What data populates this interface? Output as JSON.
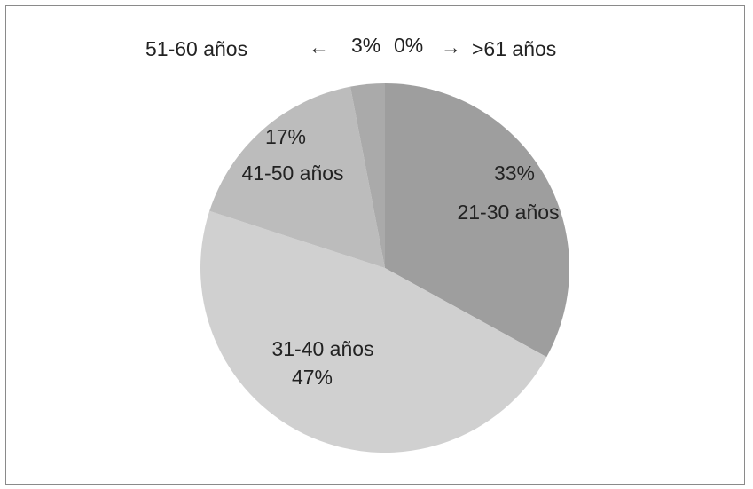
{
  "chart_data": {
    "type": "pie",
    "slices": [
      {
        "category": "21-30 años",
        "value": 33,
        "label": "33%",
        "color": "#9e9e9e"
      },
      {
        "category": "31-40 años",
        "value": 47,
        "label": "47%",
        "color": "#d0d0d0"
      },
      {
        "category": "41-50 años",
        "value": 17,
        "label": "17%",
        "color": "#bcbcbc"
      },
      {
        "category": "51-60 años",
        "value": 3,
        "label": "3%",
        "color": "#aaaaaa"
      },
      {
        "category": ">61 años",
        "value": 0,
        "label": "0%",
        "color": "#b5b5b5"
      }
    ],
    "callout_left_arrow": "←",
    "callout_right_arrow": "→",
    "title": "",
    "legend": "none"
  }
}
